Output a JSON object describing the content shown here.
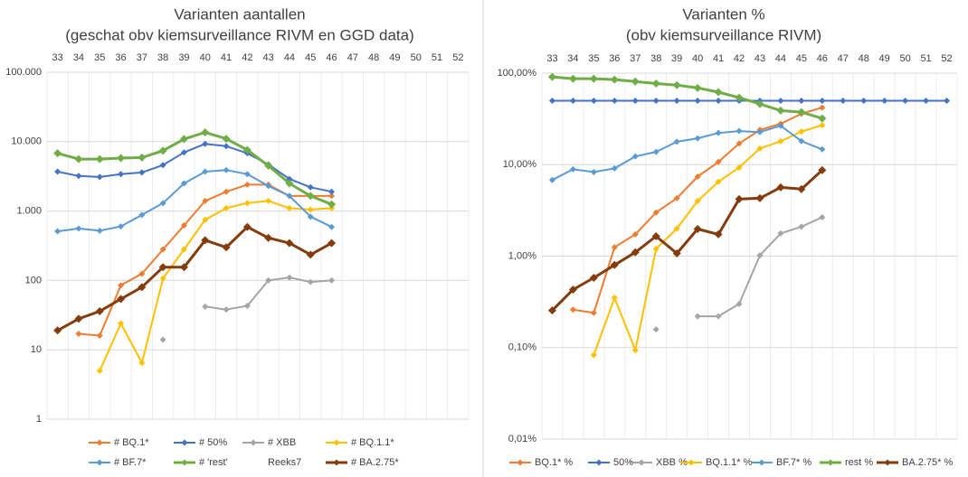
{
  "chart_data": [
    {
      "type": "line",
      "title": "Varianten aantallen",
      "subtitle": "(geschat obv kiemsurveillance RIVM en GGD data)",
      "log_scale": true,
      "grid": true,
      "legend": "bottom",
      "categories": [
        33,
        34,
        35,
        36,
        37,
        38,
        39,
        40,
        41,
        42,
        43,
        44,
        45,
        46,
        47,
        48,
        49,
        50,
        51,
        52
      ],
      "ylim": [
        1,
        100000
      ],
      "yticks": [
        1,
        10,
        100,
        {
          "value": 1000,
          "label": "1.000"
        },
        {
          "value": 10000,
          "label": "10.000"
        },
        {
          "value": 100000,
          "label": "100.000"
        }
      ],
      "series": [
        {
          "name": "# BQ.1*",
          "color": "#ed7d31",
          "values": [
            null,
            17,
            16,
            85,
            125,
            280,
            620,
            1400,
            1900,
            2400,
            2400,
            1650,
            1650,
            1650,
            null,
            null,
            null,
            null,
            null,
            null
          ]
        },
        {
          "name": "# 50%",
          "color": "#4472c4",
          "values": [
            3700,
            3200,
            3100,
            3400,
            3600,
            4600,
            7000,
            9300,
            8600,
            6800,
            4700,
            2900,
            2200,
            1900,
            null,
            null,
            null,
            null,
            null,
            null
          ]
        },
        {
          "name": "# XBB",
          "color": "#a5a5a5",
          "values": [
            null,
            null,
            null,
            null,
            null,
            14,
            null,
            42,
            38,
            43,
            100,
            110,
            95,
            100,
            null,
            null,
            null,
            null,
            null,
            null
          ]
        },
        {
          "name": "# BQ.1.1*",
          "color": "#ffc000",
          "values": [
            null,
            null,
            5,
            24,
            6.5,
            107,
            280,
            750,
            1100,
            1300,
            1400,
            1100,
            1050,
            1100,
            null,
            null,
            null,
            null,
            null,
            null
          ]
        },
        {
          "name": "# BF.7*",
          "color": "#5b9bd5",
          "values": [
            510,
            560,
            520,
            600,
            880,
            1300,
            2500,
            3700,
            3900,
            3400,
            2300,
            1650,
            830,
            590,
            null,
            null,
            null,
            null,
            null,
            null
          ]
        },
        {
          "name": "# 'rest'",
          "color": "#70ad47",
          "width": 3,
          "values": [
            6800,
            5600,
            5600,
            5800,
            5900,
            7400,
            10900,
            13600,
            11000,
            7600,
            4500,
            2500,
            1650,
            1250,
            null,
            null,
            null,
            null,
            null,
            null
          ]
        },
        {
          "name": "Reeks7",
          "values": [
            null,
            null,
            null,
            null,
            null,
            null,
            null,
            null,
            null,
            null,
            null,
            null,
            null,
            null,
            null,
            null,
            null,
            null,
            null,
            null
          ]
        },
        {
          "name": "# BA.2.75*",
          "color": "#843c0c",
          "width": 3,
          "values": [
            19,
            28,
            36,
            54,
            80,
            155,
            155,
            380,
            300,
            590,
            410,
            345,
            235,
            345,
            null,
            null,
            null,
            null,
            null,
            null
          ]
        }
      ]
    },
    {
      "type": "line",
      "title": "Varianten %",
      "subtitle": "(obv kiemsurveillance RIVM)",
      "log_scale": true,
      "grid": true,
      "legend": "bottom",
      "categories": [
        33,
        34,
        35,
        36,
        37,
        38,
        39,
        40,
        41,
        42,
        43,
        44,
        45,
        46,
        47,
        48,
        49,
        50,
        51,
        52
      ],
      "ylim": [
        0.01,
        100
      ],
      "yticks": [
        {
          "value": 0.01,
          "label": "0,01%"
        },
        {
          "value": 0.1,
          "label": "0,10%"
        },
        {
          "value": 1,
          "label": "1,00%"
        },
        {
          "value": 10,
          "label": "10,00%"
        },
        {
          "value": 100,
          "label": "100,00%"
        }
      ],
      "series": [
        {
          "name": "BQ.1* %",
          "color": "#ed7d31",
          "values": [
            null,
            0.26,
            0.24,
            1.25,
            1.73,
            3.0,
            4.3,
            7.4,
            10.7,
            17,
            24,
            28,
            36,
            42,
            null,
            null,
            null,
            null,
            null,
            null
          ]
        },
        {
          "name": "50%",
          "color": "#4472c4",
          "values": [
            50,
            50,
            50,
            50,
            50,
            50,
            50,
            50,
            50,
            50,
            50,
            50,
            50,
            50,
            50,
            50,
            50,
            50,
            50,
            50
          ]
        },
        {
          "name": "XBB %",
          "color": "#a5a5a5",
          "values": [
            null,
            null,
            null,
            null,
            null,
            0.158,
            null,
            0.22,
            0.22,
            0.3,
            1.02,
            1.77,
            2.1,
            2.66,
            null,
            null,
            null,
            null,
            null,
            null
          ]
        },
        {
          "name": "BQ.1.1* %",
          "color": "#ffc000",
          "values": [
            null,
            null,
            0.083,
            0.35,
            0.094,
            1.2,
            2.0,
            4.0,
            6.5,
            9.3,
            15,
            18,
            23,
            27,
            null,
            null,
            null,
            null,
            null,
            null
          ]
        },
        {
          "name": "BF.7* %",
          "color": "#5b9bd5",
          "values": [
            6.8,
            8.9,
            8.3,
            9.1,
            12.3,
            13.8,
            17.8,
            19.4,
            22.2,
            23.3,
            22.7,
            26.6,
            18.1,
            14.7,
            null,
            null,
            null,
            null,
            null,
            null
          ]
        },
        {
          "name": "rest %",
          "color": "#70ad47",
          "width": 3,
          "values": [
            91,
            87,
            87,
            85,
            81,
            77,
            74,
            69,
            62,
            54,
            46,
            39,
            37.5,
            32,
            null,
            null,
            null,
            null,
            null,
            null
          ]
        },
        {
          "name": "BA.2.75* %",
          "color": "#843c0c",
          "width": 3,
          "values": [
            0.255,
            0.43,
            0.58,
            0.8,
            1.1,
            1.65,
            1.07,
            1.98,
            1.73,
            4.2,
            4.3,
            5.65,
            5.4,
            8.7,
            null,
            null,
            null,
            null,
            null,
            null
          ]
        }
      ]
    }
  ]
}
